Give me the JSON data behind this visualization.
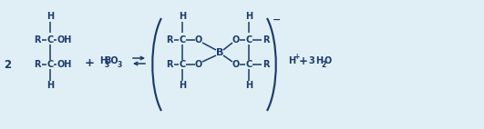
{
  "bg_color": "#e0eff5",
  "text_color": "#1a3a6b",
  "figsize": [
    5.31,
    1.42
  ],
  "dpi": 100,
  "fs": 8.5,
  "sfs": 7.0,
  "lw": 1.1,
  "xlim": [
    0,
    531
  ],
  "ylim": [
    0,
    142
  ]
}
